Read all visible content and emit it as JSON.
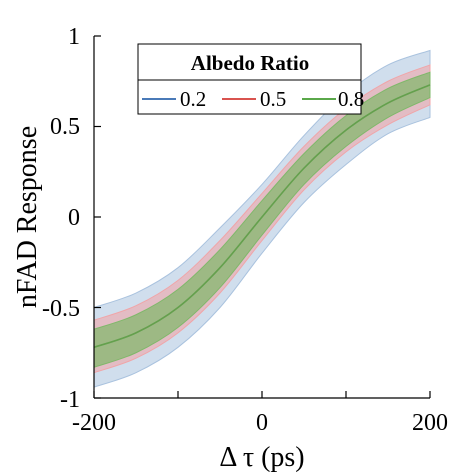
{
  "chart_data": {
    "type": "line",
    "xlabel": "Δ τ (ps)",
    "ylabel": "nFAD Response",
    "xlim": [
      -200,
      200
    ],
    "ylim": [
      -1,
      1
    ],
    "xticks": [
      "-200",
      "0",
      "200"
    ],
    "yticks": [
      "-1",
      "-0.5",
      "0",
      "0.5",
      "1"
    ],
    "legend": {
      "title": "Albedo Ratio",
      "placement": "top",
      "entries": [
        "0.2",
        "0.5",
        "0.8"
      ]
    },
    "x": [
      -200,
      -150,
      -100,
      -50,
      0,
      50,
      100,
      150,
      200
    ],
    "series": [
      {
        "name": "0.2",
        "color": "#4a7ab8",
        "band_color": "#a9c2de",
        "mean": [
          -0.72,
          -0.64,
          -0.5,
          -0.28,
          0.0,
          0.27,
          0.48,
          0.63,
          0.73
        ],
        "upper": [
          -0.5,
          -0.42,
          -0.28,
          -0.06,
          0.18,
          0.45,
          0.68,
          0.84,
          0.92
        ],
        "lower": [
          -0.94,
          -0.86,
          -0.72,
          -0.5,
          -0.2,
          0.08,
          0.29,
          0.46,
          0.55
        ]
      },
      {
        "name": "0.5",
        "color": "#d9534f",
        "band_color": "#f0a5a8",
        "mean": [
          -0.72,
          -0.64,
          -0.5,
          -0.28,
          0.0,
          0.27,
          0.48,
          0.63,
          0.73
        ],
        "upper": [
          -0.57,
          -0.49,
          -0.35,
          -0.13,
          0.13,
          0.39,
          0.6,
          0.75,
          0.84
        ],
        "lower": [
          -0.86,
          -0.78,
          -0.64,
          -0.42,
          -0.13,
          0.15,
          0.36,
          0.51,
          0.62
        ]
      },
      {
        "name": "0.8",
        "color": "#5aa84a",
        "band_color": "#7fb86a",
        "mean": [
          -0.72,
          -0.64,
          -0.5,
          -0.28,
          0.0,
          0.27,
          0.48,
          0.63,
          0.73
        ],
        "upper": [
          -0.62,
          -0.54,
          -0.4,
          -0.18,
          0.09,
          0.35,
          0.56,
          0.71,
          0.8
        ],
        "lower": [
          -0.83,
          -0.75,
          -0.61,
          -0.39,
          -0.1,
          0.18,
          0.39,
          0.55,
          0.66
        ]
      }
    ]
  }
}
